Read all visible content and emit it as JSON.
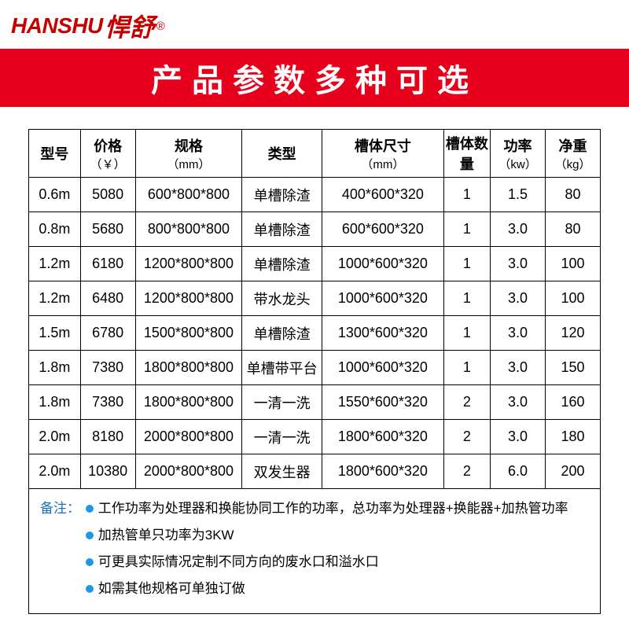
{
  "logo": {
    "en": "HANSHU",
    "cn": "悍舒",
    "r": "®"
  },
  "banner": {
    "text": "产品参数多种可选",
    "bg": "#e6001c",
    "color": "#ffffff"
  },
  "table": {
    "columns": [
      {
        "label": "型号",
        "sub": ""
      },
      {
        "label": "价格",
        "sub": "（￥）"
      },
      {
        "label": "规格",
        "sub": "（mm）"
      },
      {
        "label": "类型",
        "sub": ""
      },
      {
        "label": "槽体尺寸",
        "sub": "（mm）"
      },
      {
        "label": "槽体数量",
        "sub": ""
      },
      {
        "label": "功率",
        "sub": "（kw）"
      },
      {
        "label": "净重",
        "sub": "（kg）"
      }
    ],
    "rows": [
      [
        "0.6m",
        "5080",
        "600*800*800",
        "单槽除渣",
        "400*600*320",
        "1",
        "1.5",
        "80"
      ],
      [
        "0.8m",
        "5680",
        "800*800*800",
        "单槽除渣",
        "600*600*320",
        "1",
        "3.0",
        "80"
      ],
      [
        "1.2m",
        "6180",
        "1200*800*800",
        "单槽除渣",
        "1000*600*320",
        "1",
        "3.0",
        "100"
      ],
      [
        "1.2m",
        "6480",
        "1200*800*800",
        "带水龙头",
        "1000*600*320",
        "1",
        "3.0",
        "100"
      ],
      [
        "1.5m",
        "6780",
        "1500*800*800",
        "单槽除渣",
        "1300*600*320",
        "1",
        "3.0",
        "120"
      ],
      [
        "1.8m",
        "7380",
        "1800*800*800",
        "单槽带平台",
        "1000*600*320",
        "1",
        "3.0",
        "150"
      ],
      [
        "1.8m",
        "7380",
        "1800*800*800",
        "一清一洗",
        "1550*600*320",
        "2",
        "3.0",
        "160"
      ],
      [
        "2.0m",
        "8180",
        "2000*800*800",
        "一清一洗",
        "1800*600*320",
        "2",
        "3.0",
        "180"
      ],
      [
        "2.0m",
        "10380",
        "2000*800*800",
        "双发生器",
        "1800*600*320",
        "2",
        "6.0",
        "200"
      ]
    ]
  },
  "notes": {
    "label": "备注：",
    "label_color": "#1b6fb8",
    "bullet_color": "#2196e8",
    "items": [
      "工作功率为处理器和换能协同工作的功率，总功率为处理器+换能器+加热管功率",
      "加热管单只功率为3KW",
      "可更具实际情况定制不同方向的废水口和溢水口",
      "如需其他规格可单独订做"
    ]
  }
}
